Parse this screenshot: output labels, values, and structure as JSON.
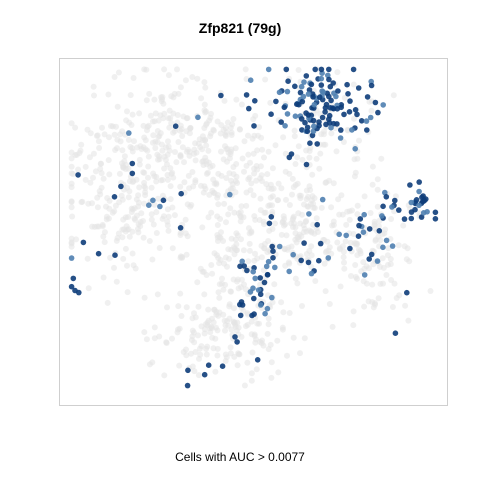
{
  "title": "Zfp821 (79g)",
  "caption": "Cells with AUC > 0.0077",
  "colors": {
    "background_cell": "#e3e3e3",
    "positive_cell_light": "#4f7fb0",
    "positive_cell_dark": "#0e3d7a",
    "frame": "#cfcfcf"
  },
  "chart_data": {
    "type": "scatter",
    "title": "Zfp821 (79g)",
    "xlabel": "",
    "ylabel": "",
    "caption": "Cells with AUC > 0.0077",
    "grid": false,
    "legend": "none",
    "series": [
      {
        "name": "",
        "color": "#e3e3e3",
        "clusters": [
          {
            "cx": 0.18,
            "cy": 0.38,
            "sx": 0.09,
            "sy": 0.13,
            "n": 260
          },
          {
            "cx": 0.3,
            "cy": 0.2,
            "sx": 0.08,
            "sy": 0.08,
            "n": 120
          },
          {
            "cx": 0.44,
            "cy": 0.25,
            "sx": 0.07,
            "sy": 0.08,
            "n": 90
          },
          {
            "cx": 0.45,
            "cy": 0.5,
            "sx": 0.06,
            "sy": 0.1,
            "n": 130
          },
          {
            "cx": 0.62,
            "cy": 0.48,
            "sx": 0.07,
            "sy": 0.09,
            "n": 150
          },
          {
            "cx": 0.42,
            "cy": 0.78,
            "sx": 0.09,
            "sy": 0.07,
            "n": 170
          },
          {
            "cx": 0.8,
            "cy": 0.55,
            "sx": 0.06,
            "sy": 0.1,
            "n": 120
          },
          {
            "cx": 0.68,
            "cy": 0.18,
            "sx": 0.07,
            "sy": 0.07,
            "n": 80
          }
        ]
      },
      {
        "name": "",
        "color": "#0e3d7a",
        "clusters": [
          {
            "cx": 0.68,
            "cy": 0.14,
            "sx": 0.075,
            "sy": 0.06,
            "n": 130
          },
          {
            "cx": 0.92,
            "cy": 0.42,
            "sx": 0.04,
            "sy": 0.025,
            "n": 30
          },
          {
            "cx": 0.8,
            "cy": 0.52,
            "sx": 0.05,
            "sy": 0.08,
            "n": 25
          },
          {
            "cx": 0.5,
            "cy": 0.66,
            "sx": 0.025,
            "sy": 0.05,
            "n": 30
          },
          {
            "cx": 0.6,
            "cy": 0.55,
            "sx": 0.05,
            "sy": 0.06,
            "n": 18
          },
          {
            "cx": 0.14,
            "cy": 0.48,
            "sx": 0.07,
            "sy": 0.1,
            "n": 14
          },
          {
            "cx": 0.44,
            "cy": 0.88,
            "sx": 0.06,
            "sy": 0.05,
            "n": 8
          },
          {
            "cx": 0.32,
            "cy": 0.3,
            "sx": 0.08,
            "sy": 0.12,
            "n": 10
          }
        ]
      }
    ]
  }
}
